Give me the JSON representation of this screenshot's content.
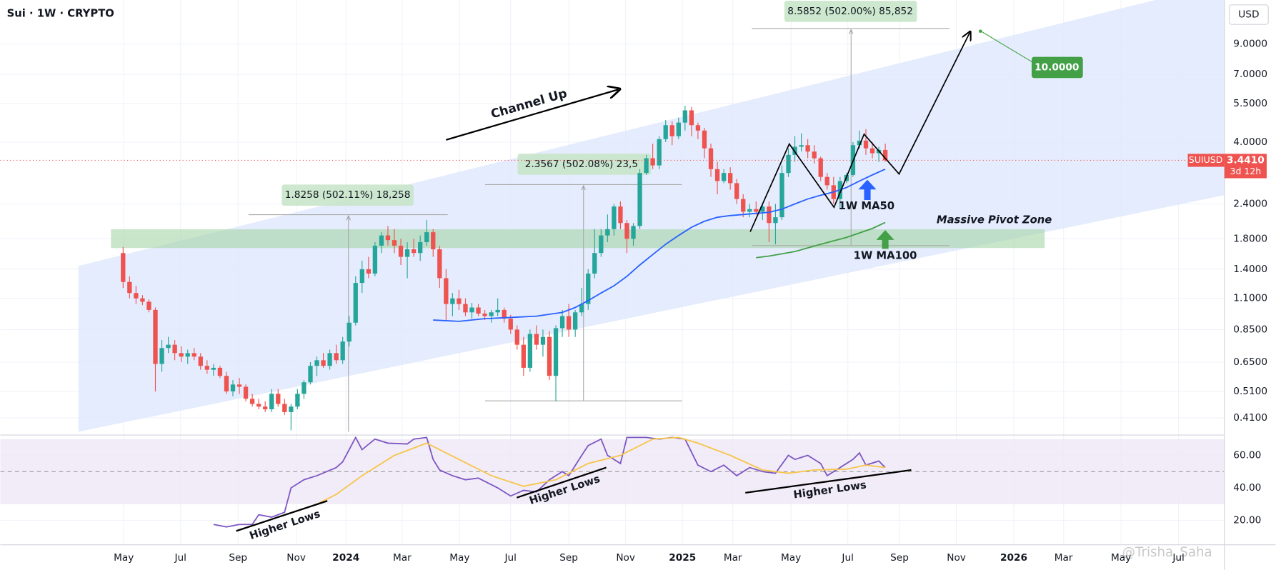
{
  "chart_data": [
    {
      "type": "candlestick",
      "title": "Sui · 1W · CRYPTO",
      "currency": "USD",
      "watermark": "@Trisha_Saha",
      "log": true,
      "grid": true,
      "up_color": "#26a69a",
      "down_color": "#ef5350",
      "open": [
        1.6,
        1.26,
        1.15,
        1.1,
        1.07,
        1.0,
        0.64,
        0.73,
        0.75,
        0.7,
        0.68,
        0.7,
        0.68,
        0.63,
        0.61,
        0.62,
        0.58,
        0.51,
        0.54,
        0.53,
        0.48,
        0.46,
        0.45,
        0.44,
        0.5,
        0.46,
        0.43,
        0.45,
        0.5,
        0.55,
        0.63,
        0.66,
        0.63,
        0.7,
        0.66,
        0.77,
        0.9,
        1.25,
        1.4,
        1.35,
        1.7,
        1.85,
        1.78,
        1.7,
        1.55,
        1.65,
        1.6,
        1.75,
        1.9,
        1.65,
        1.3,
        1.05,
        1.1,
        1.05,
        0.98,
        1.02,
        0.97,
        0.95,
        0.98,
        1.0,
        0.93,
        0.85,
        0.75,
        0.62,
        0.82,
        0.75,
        0.8,
        0.58,
        0.86,
        0.95,
        0.85,
        0.98,
        1.05,
        1.35,
        1.6,
        1.85,
        1.95,
        2.35,
        2.05,
        1.8,
        2.0,
        3.1,
        3.5,
        3.3,
        4.1,
        4.6,
        4.2,
        4.7,
        5.2,
        4.6,
        4.4,
        3.8,
        3.2,
        2.9,
        3.1,
        2.85,
        2.5,
        2.25,
        2.3,
        2.25,
        2.35,
        2.05,
        2.15,
        3.1,
        3.6,
        3.85,
        3.9,
        3.7,
        3.5,
        3.0,
        2.8,
        2.5,
        2.9,
        3.05,
        3.9,
        4.05,
        3.8,
        3.65,
        3.75
      ],
      "high": [
        1.68,
        1.32,
        1.22,
        1.13,
        1.09,
        1.02,
        0.78,
        0.8,
        0.78,
        0.74,
        0.72,
        0.73,
        0.7,
        0.66,
        0.64,
        0.63,
        0.6,
        0.56,
        0.57,
        0.54,
        0.5,
        0.48,
        0.47,
        0.52,
        0.52,
        0.48,
        0.46,
        0.52,
        0.56,
        0.65,
        0.68,
        0.7,
        0.72,
        0.75,
        0.8,
        0.95,
        1.32,
        1.5,
        1.55,
        1.75,
        1.9,
        2.0,
        1.95,
        1.8,
        1.75,
        1.8,
        1.85,
        2.1,
        1.95,
        1.7,
        1.4,
        1.15,
        1.18,
        1.1,
        1.06,
        1.05,
        1.0,
        1.0,
        1.1,
        1.02,
        0.96,
        0.88,
        0.8,
        0.85,
        0.88,
        0.85,
        0.84,
        0.88,
        1.0,
        1.05,
        1.0,
        1.2,
        1.4,
        1.95,
        1.95,
        2.2,
        2.4,
        2.45,
        2.1,
        2.05,
        3.2,
        3.6,
        3.95,
        4.2,
        4.8,
        4.75,
        4.9,
        5.4,
        5.35,
        4.7,
        4.5,
        3.95,
        3.4,
        3.2,
        3.25,
        2.95,
        2.6,
        2.4,
        2.45,
        2.4,
        2.45,
        2.4,
        3.3,
        3.8,
        4.2,
        4.3,
        4.1,
        3.9,
        3.55,
        3.1,
        3.0,
        3.0,
        3.1,
        4.0,
        4.4,
        4.45,
        4.0,
        3.85,
        3.95
      ],
      "low": [
        1.2,
        1.1,
        1.05,
        1.04,
        0.98,
        0.51,
        0.6,
        0.7,
        0.66,
        0.65,
        0.64,
        0.66,
        0.61,
        0.59,
        0.58,
        0.57,
        0.5,
        0.49,
        0.5,
        0.47,
        0.45,
        0.44,
        0.43,
        0.43,
        0.45,
        0.42,
        0.37,
        0.44,
        0.48,
        0.54,
        0.58,
        0.62,
        0.61,
        0.64,
        0.64,
        0.74,
        0.88,
        1.15,
        1.3,
        1.32,
        1.6,
        1.7,
        1.6,
        1.45,
        1.3,
        1.55,
        1.5,
        1.7,
        1.55,
        1.2,
        0.92,
        0.95,
        1.0,
        0.95,
        0.93,
        0.95,
        0.92,
        0.9,
        0.95,
        0.9,
        0.82,
        0.72,
        0.58,
        0.6,
        0.72,
        0.68,
        0.56,
        0.47,
        0.8,
        0.8,
        0.8,
        0.95,
        1.0,
        1.3,
        1.55,
        1.75,
        1.85,
        1.95,
        1.6,
        1.7,
        1.95,
        3.05,
        3.2,
        3.2,
        4.0,
        3.9,
        4.1,
        4.4,
        4.2,
        4.1,
        3.5,
        3.0,
        2.6,
        2.85,
        2.7,
        2.4,
        2.15,
        2.15,
        2.2,
        2.1,
        1.75,
        1.72,
        2.1,
        3.0,
        3.4,
        3.7,
        3.5,
        3.35,
        2.9,
        2.7,
        2.4,
        2.3,
        2.85,
        3.0,
        3.8,
        3.6,
        3.5,
        3.4,
        3.4
      ],
      "close": [
        1.26,
        1.15,
        1.1,
        1.07,
        1.0,
        0.64,
        0.73,
        0.75,
        0.7,
        0.68,
        0.7,
        0.68,
        0.63,
        0.61,
        0.62,
        0.58,
        0.51,
        0.54,
        0.53,
        0.48,
        0.46,
        0.45,
        0.44,
        0.5,
        0.46,
        0.43,
        0.45,
        0.5,
        0.55,
        0.63,
        0.66,
        0.63,
        0.7,
        0.66,
        0.77,
        0.9,
        1.25,
        1.4,
        1.35,
        1.7,
        1.85,
        1.78,
        1.7,
        1.55,
        1.65,
        1.6,
        1.75,
        1.9,
        1.65,
        1.3,
        1.05,
        1.1,
        1.05,
        0.98,
        1.02,
        0.97,
        0.95,
        0.98,
        1.0,
        0.93,
        0.85,
        0.75,
        0.62,
        0.82,
        0.75,
        0.8,
        0.58,
        0.86,
        0.95,
        0.85,
        0.98,
        1.05,
        1.35,
        1.6,
        1.85,
        1.95,
        2.35,
        2.05,
        1.8,
        2.0,
        3.1,
        3.5,
        3.3,
        4.1,
        4.6,
        4.2,
        4.7,
        5.2,
        4.6,
        4.4,
        3.8,
        3.2,
        2.9,
        3.1,
        2.85,
        2.5,
        2.25,
        2.3,
        2.25,
        2.35,
        2.05,
        2.15,
        3.1,
        3.6,
        3.85,
        3.9,
        3.7,
        3.5,
        3.0,
        2.8,
        2.5,
        2.9,
        3.05,
        3.9,
        4.05,
        3.8,
        3.65,
        3.75,
        3.441
      ],
      "series": [
        {
          "name": "1W MA50",
          "color": "#2962ff",
          "x": [
            48,
            52,
            56,
            60,
            64,
            68,
            70,
            72,
            74,
            76,
            78,
            80,
            82,
            84,
            86,
            88,
            90,
            92,
            94,
            96,
            98,
            100,
            102,
            104,
            106,
            108,
            110,
            112,
            114,
            116,
            118
          ],
          "values": [
            0.92,
            0.91,
            0.93,
            0.94,
            0.95,
            0.98,
            1.02,
            1.08,
            1.15,
            1.22,
            1.32,
            1.45,
            1.58,
            1.72,
            1.85,
            1.98,
            2.08,
            2.15,
            2.18,
            2.2,
            2.22,
            2.24,
            2.3,
            2.4,
            2.5,
            2.58,
            2.65,
            2.75,
            2.9,
            3.05,
            3.2
          ]
        },
        {
          "name": "1W MA100",
          "color": "#43a047",
          "x": [
            98,
            100,
            104,
            108,
            112,
            116,
            118
          ],
          "values": [
            1.54,
            1.56,
            1.62,
            1.72,
            1.82,
            1.96,
            2.06
          ]
        }
      ],
      "xlim": [
        -19,
        170.5
      ],
      "xticks": [
        {
          "value": 0.1,
          "label": "May"
        },
        {
          "value": 8.9,
          "label": "Jul"
        },
        {
          "value": 17.8,
          "label": "Sep"
        },
        {
          "value": 26.8,
          "label": "Nov"
        },
        {
          "value": 34.5,
          "label": "2024"
        },
        {
          "value": 43.2,
          "label": "Mar"
        },
        {
          "value": 52.1,
          "label": "May"
        },
        {
          "value": 60.0,
          "label": "Jul"
        },
        {
          "value": 69.0,
          "label": "Sep"
        },
        {
          "value": 77.8,
          "label": "Nov"
        },
        {
          "value": 86.6,
          "label": "2025"
        },
        {
          "value": 94.4,
          "label": "Mar"
        },
        {
          "value": 103.4,
          "label": "May"
        },
        {
          "value": 112.2,
          "label": "Jul"
        },
        {
          "value": 120.2,
          "label": "Sep"
        },
        {
          "value": 129.0,
          "label": "Nov"
        },
        {
          "value": 137.9,
          "label": "2026"
        },
        {
          "value": 145.6,
          "label": "Mar"
        },
        {
          "value": 154.5,
          "label": "May"
        },
        {
          "value": 163.4,
          "label": "Jul"
        }
      ],
      "ylim": [
        0.363,
        12.94
      ],
      "yticks": [
        {
          "value": 9,
          "label": "9.0000"
        },
        {
          "value": 7,
          "label": "7.0000"
        },
        {
          "value": 5.5,
          "label": "5.5000"
        },
        {
          "value": 4,
          "label": "4.0000"
        },
        {
          "value": 2.4,
          "label": "2.4000"
        },
        {
          "value": 1.8,
          "label": "1.8000"
        },
        {
          "value": 1.4,
          "label": "1.4000"
        },
        {
          "value": 1.1,
          "label": "1.1000"
        },
        {
          "value": 0.85,
          "label": "0.8500"
        },
        {
          "value": 0.65,
          "label": "0.6500"
        },
        {
          "value": 0.51,
          "label": "0.5100"
        },
        {
          "value": 0.41,
          "label": "0.4100"
        }
      ],
      "current_price": {
        "value": 3.441,
        "label": "3.4410"
      },
      "symbol": "SUIUSD",
      "countdown": "3d 12h",
      "target": {
        "value": 10,
        "label": "10.0000"
      },
      "annotations": {
        "channel": "Channel Up",
        "pivot": "Massive Pivot Zone",
        "measures": [
          "1.8258 (502.11%) 18,258",
          "2.3567 (502.08%) 23,5",
          "8.5852 (502.00%) 85,852"
        ]
      }
    },
    {
      "type": "line",
      "grid": true,
      "series": [
        {
          "color": "#7e57c2",
          "x": [
            14,
            16,
            18,
            20,
            21,
            23,
            25,
            26,
            28,
            30,
            33,
            34,
            36,
            37,
            39,
            41,
            44,
            45,
            47,
            48,
            49,
            51,
            53,
            55,
            58,
            60,
            62,
            64,
            66,
            68,
            69,
            71,
            72,
            74,
            75,
            77,
            78,
            81,
            83,
            85,
            87,
            89,
            91,
            93,
            95,
            97,
            99,
            101,
            103,
            104,
            106,
            108,
            109,
            111,
            113,
            114,
            115,
            117,
            118
          ],
          "values": [
            17.5,
            16,
            17.5,
            17.5,
            23.5,
            22,
            25,
            40,
            45,
            47.5,
            52.5,
            56,
            71,
            63.5,
            70,
            67.5,
            67,
            70,
            71,
            57.5,
            51,
            47.5,
            45,
            46,
            40,
            35,
            38.5,
            37.5,
            45,
            50,
            47.5,
            60,
            66,
            70,
            60,
            55,
            71,
            71,
            70,
            71,
            70,
            54,
            50,
            54,
            47.5,
            52.5,
            50,
            49,
            60,
            57.5,
            60,
            55,
            47.5,
            52.5,
            57.5,
            61.5,
            54,
            56.5,
            52.5
          ]
        },
        {
          "color": "#f7c548",
          "x": [
            30,
            33,
            37,
            42,
            47,
            52,
            57,
            62,
            67,
            72,
            77,
            82,
            86,
            89,
            94,
            99,
            103,
            107,
            112,
            115,
            118
          ],
          "values": [
            30,
            36,
            47.5,
            60,
            67.5,
            57.5,
            47.5,
            41,
            45,
            55,
            60,
            70,
            71,
            67.5,
            60,
            51,
            49,
            51,
            51.5,
            54,
            52.5
          ]
        }
      ],
      "band": [
        30,
        70
      ],
      "midline": 50,
      "ylim": [
        6,
        71
      ],
      "yticks": [
        {
          "value": 60,
          "label": "60.00"
        },
        {
          "value": 40,
          "label": "40.00"
        },
        {
          "value": 20,
          "label": "20.00"
        }
      ],
      "annotations": {
        "higher_lows": [
          "Higher Lows",
          "Higher Lows",
          "Higher Lows"
        ]
      }
    }
  ]
}
